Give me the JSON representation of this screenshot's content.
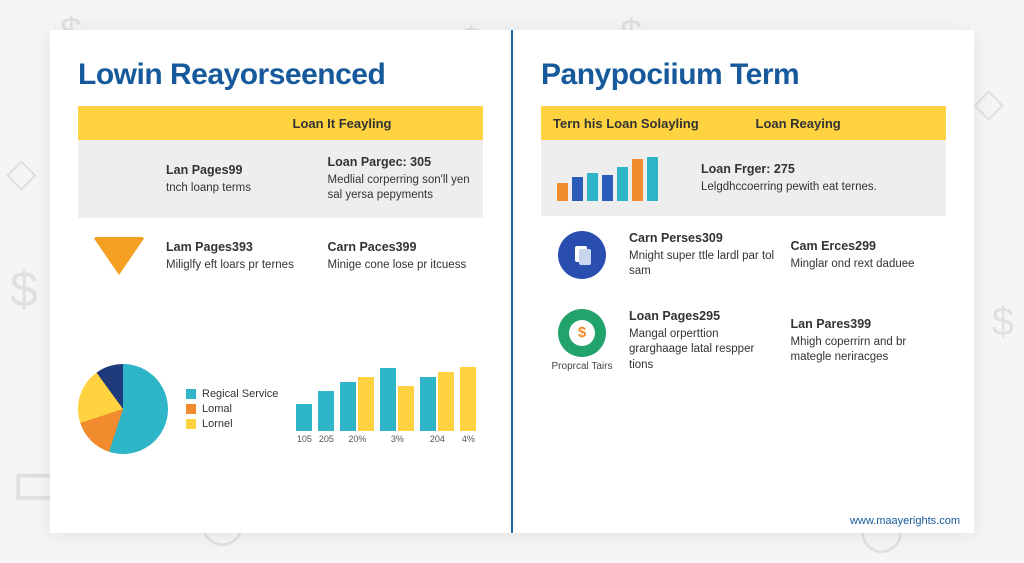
{
  "background": {
    "page_color": "#f5f5f5",
    "icon_color": "#000000",
    "icon_opacity": 0.08
  },
  "card": {
    "background": "#ffffff",
    "divider_color": "#1f6aa5"
  },
  "left": {
    "title": "Lowin Reayorseenced",
    "title_color": "#165a9c",
    "header": {
      "left": "",
      "right": "Loan It Feayling",
      "bg": "#ffd23f"
    },
    "row1": {
      "cell1_title": "Lan Pages99",
      "cell1_sub": "tnch loanp terms",
      "cell2_title": "Loan Pargec: 305",
      "cell2_sub": "Medlial corperring son'll yen sal yersa pepyments",
      "shaded": true
    },
    "row2": {
      "cell1_title": "Lam Pages393",
      "cell1_sub": "Miliglfy eft loars pr ternes",
      "cell2_title": "Carn Paces399",
      "cell2_sub": "Minige cone lose pr itcuess",
      "shaded": false,
      "icon_color": "#f6a023"
    },
    "pie": {
      "slices": [
        {
          "label": "Regical Service",
          "color": "#2eb6c8",
          "pct": 55
        },
        {
          "label": "Lomal",
          "color": "#f08c2e",
          "pct": 15
        },
        {
          "label": "Lornel",
          "color": "#ffd23f",
          "pct": 20
        },
        {
          "label": "",
          "color": "#1f3a7a",
          "pct": 10
        }
      ]
    },
    "bars": {
      "type": "bar",
      "colors": [
        "#2eb6c8",
        "#ffd23f"
      ],
      "items": [
        {
          "label": "105",
          "v1": 30,
          "v2": 0
        },
        {
          "label": "205",
          "v1": 45,
          "v2": 0
        },
        {
          "label": "20%",
          "v1": 55,
          "v2": 60
        },
        {
          "label": "3%",
          "v1": 70,
          "v2": 50
        },
        {
          "label": "204",
          "v1": 60,
          "v2": 66
        },
        {
          "label": "4%",
          "v1": 0,
          "v2": 72
        }
      ]
    }
  },
  "right": {
    "title": "Panypociium Term",
    "title_color": "#165a9c",
    "header": {
      "left": "Tern his Loan Solayling",
      "right": "Loan Reaying",
      "bg": "#ffd23f"
    },
    "row1": {
      "shaded": true,
      "chart": {
        "type": "bar",
        "heights": [
          18,
          24,
          28,
          26,
          34,
          42,
          44
        ],
        "colors": [
          "#f08c2e",
          "#2a5bb8",
          "#2eb6c8",
          "#2a5bb8",
          "#2eb6c8",
          "#f08c2e",
          "#2eb6c8"
        ]
      },
      "cell2_title": "Loan Frger: 275",
      "cell2_sub": "Lelgdhccoerring pewith eat ternes."
    },
    "row2": {
      "shaded": false,
      "icon_bg": "#2a4db0",
      "cell1_title": "Carn Perses309",
      "cell1_sub": "Mnight super ttle lardl par tol sam",
      "cell2_title": "Cam Erces299",
      "cell2_sub": "Minglar ond rext daduee"
    },
    "row3": {
      "shaded": false,
      "icon_bg": "#22a36b",
      "icon_caption": "Proprcal Tairs",
      "cell1_title": "Loan Pages295",
      "cell1_sub": "Mangal orperttion grarghaage latal respper tions",
      "cell2_title": "Lan Pares399",
      "cell2_sub": "Mhigh coperrirn and br mategle neriracges"
    }
  },
  "footer_url": "www.maayerights.com"
}
